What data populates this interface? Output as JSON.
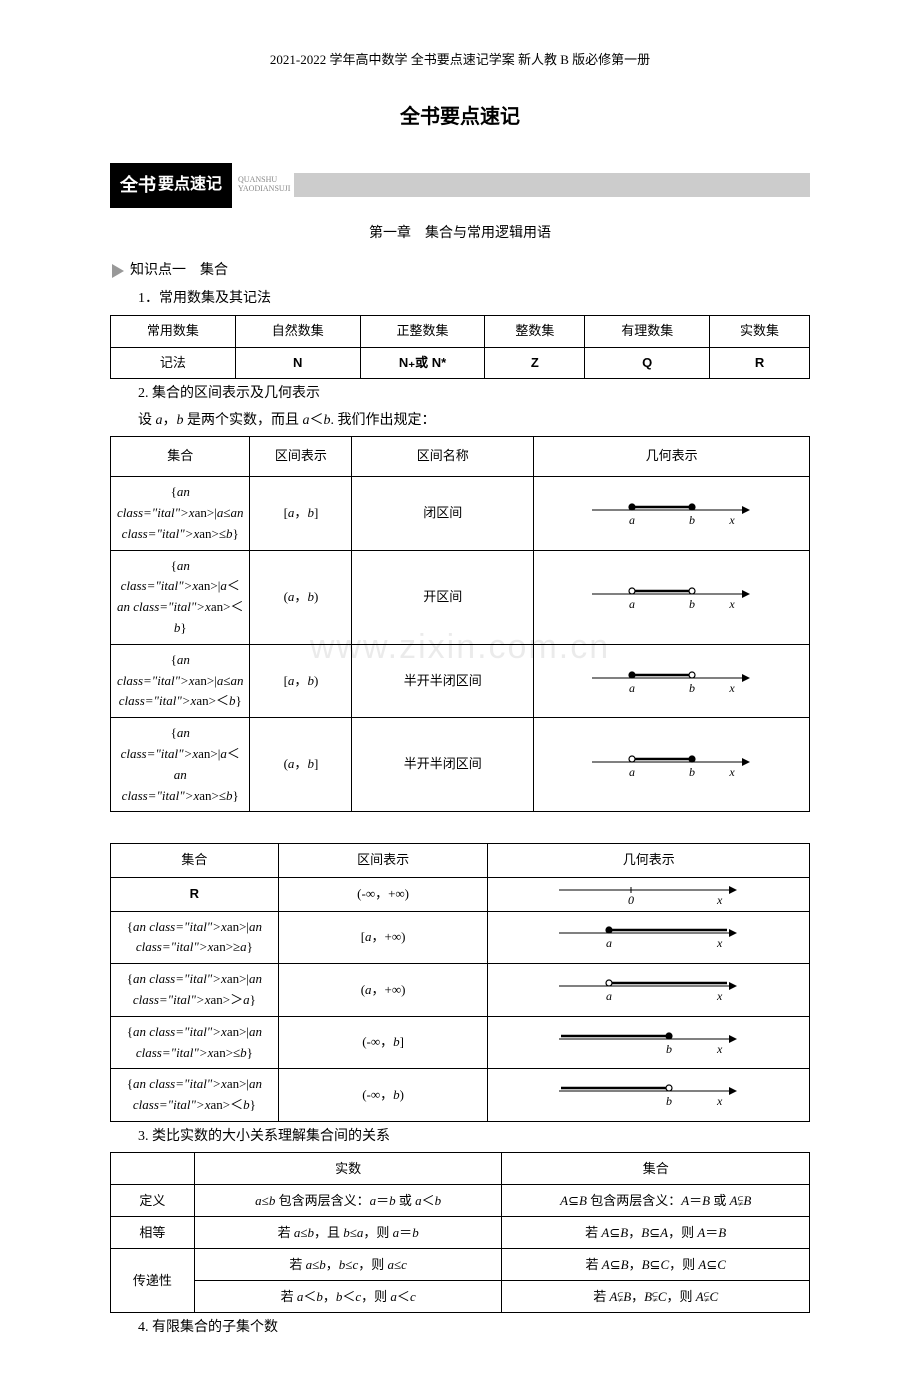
{
  "header_note": "2021-2022 学年高中数学 全书要点速记学案 新人教 B 版必修第一册",
  "main_title": "全书要点速记",
  "banner": {
    "first": "全书",
    "rest": "要点速记",
    "pinyin1": "QUANSHU",
    "pinyin2": "YAODIANSUJI"
  },
  "chapter": "第一章　集合与常用逻辑用语",
  "kp1": "知识点一　集合",
  "s1": "1．常用数集及其记法",
  "table1": {
    "r1": [
      "常用数集",
      "自然数集",
      "正整数集",
      "整数集",
      "有理数集",
      "实数集"
    ],
    "r2_label": "记法",
    "r2": [
      "N",
      "N₊或 N*",
      "Z",
      "Q",
      "R"
    ]
  },
  "s2": "2. 集合的区间表示及几何表示",
  "s2b": "设 a，b 是两个实数，而且 a＜b. 我们作出规定：",
  "table2": {
    "head": [
      "集合",
      "区间表示",
      "区间名称",
      "几何表示"
    ],
    "rows": [
      {
        "set": "{x|a≤x≤b}",
        "int": "[a，b]",
        "name": "闭区间",
        "la": true,
        "ra": true
      },
      {
        "set": "{x|a＜x＜b}",
        "int": "(a，b)",
        "name": "开区间",
        "la": false,
        "ra": false
      },
      {
        "set": "{x|a≤x＜b}",
        "int": "[a，b)",
        "name": "半开半闭区间",
        "la": true,
        "ra": false
      },
      {
        "set": "{x|a＜x≤b}",
        "int": "(a，b]",
        "name": "半开半闭区间",
        "la": false,
        "ra": true
      }
    ]
  },
  "table3": {
    "head": [
      "集合",
      "区间表示",
      "几何表示"
    ],
    "rows": [
      {
        "set": "R",
        "int": "(-∞，+∞)",
        "type": "full"
      },
      {
        "set": "{x|x≥a}",
        "int": "[a，+∞)",
        "type": "right",
        "closed": true,
        "lab": "a"
      },
      {
        "set": "{x|x＞a}",
        "int": "(a，+∞)",
        "type": "right",
        "closed": false,
        "lab": "a"
      },
      {
        "set": "{x|x≤b}",
        "int": "(-∞，b]",
        "type": "left",
        "closed": true,
        "lab": "b"
      },
      {
        "set": "{x|x＜b}",
        "int": "(-∞，b)",
        "type": "left",
        "closed": false,
        "lab": "b"
      }
    ]
  },
  "s3": "3. 类比实数的大小关系理解集合间的关系",
  "table4": {
    "head": [
      "",
      "实数",
      "集合"
    ],
    "rows": [
      [
        "定义",
        "a≤b 包含两层含义：a＝b 或 a＜b",
        "A⊆B 包含两层含义：A＝B 或 A⫋B"
      ],
      [
        "相等",
        "若 a≤b，且 b≤a，则 a＝b",
        "若 A⊆B，B⊆A，则 A＝B"
      ],
      [
        "传递性",
        "若 a≤b，b≤c，则 a≤c",
        "若 A⊆B，B⊆C，则 A⊆C"
      ],
      [
        "",
        "若 a＜b，b＜c，则 a＜c",
        "若 A⫋B，B⫋C，则 A⫋C"
      ]
    ],
    "rowspan_last": true
  },
  "s4": "4. 有限集合的子集个数",
  "colors": {
    "border": "#000000",
    "banner_line": "#cccccc",
    "watermark": "rgba(0,0,0,0.08)"
  }
}
